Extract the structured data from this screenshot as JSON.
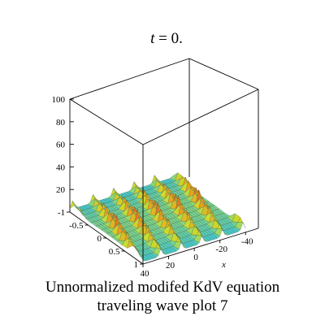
{
  "chart_data": {
    "type": "surface",
    "title_var": "t",
    "title_rest": " = 0.",
    "z_ticks": [
      "20",
      "40",
      "60",
      "80",
      "100"
    ],
    "y_ticks": [
      "-1",
      "-0.5",
      "0",
      "0.5",
      "1"
    ],
    "x_ticks": [
      "40",
      "20",
      "0",
      "-20",
      "-40"
    ],
    "xlabel": "x",
    "x_range": [
      -40,
      40
    ],
    "y_range": [
      -1,
      1
    ],
    "z_range": [
      0,
      100
    ],
    "surface_peak_z": 15,
    "colors": {
      "peak": "#d42020",
      "mid": "#e8a020",
      "low_mid": "#c8e030",
      "base": "#40c8d0",
      "frame": "#000000"
    }
  },
  "caption": {
    "line1": "Unnormalized modifed KdV equation",
    "line2": "traveling wave plot 7"
  }
}
